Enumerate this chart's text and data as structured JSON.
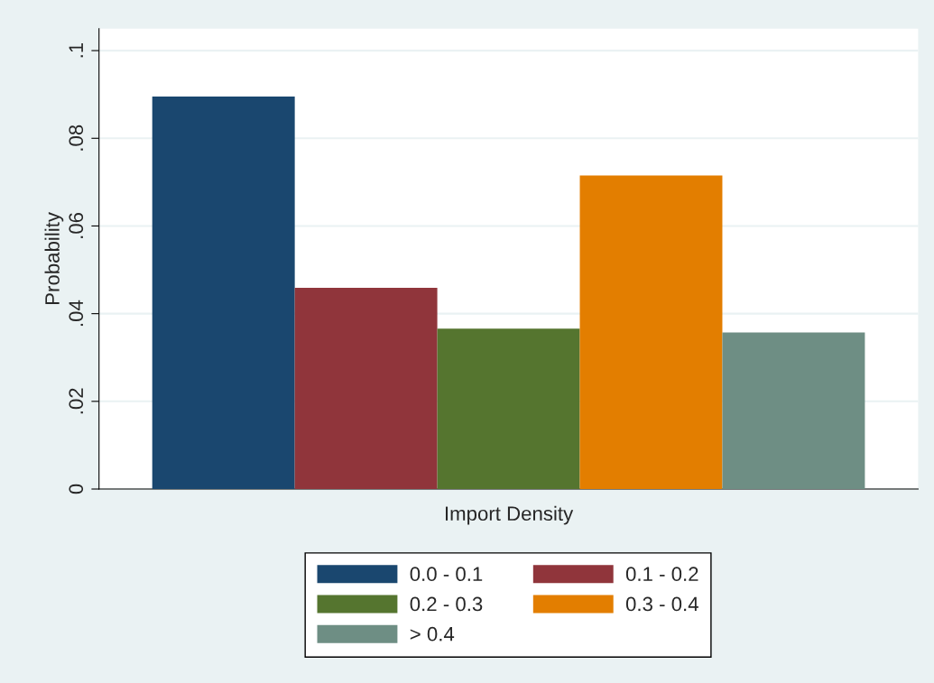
{
  "chart_data": {
    "type": "bar",
    "xlabel": "Import Density",
    "ylabel": "Probability",
    "categories": [
      null
    ],
    "series": [
      {
        "name": "0.0 - 0.1",
        "color": "#1a476f",
        "values": [
          0.0895
        ]
      },
      {
        "name": "0.1 - 0.2",
        "color": "#90353b",
        "values": [
          0.0459
        ]
      },
      {
        "name": "0.2 - 0.3",
        "color": "#55752f",
        "values": [
          0.0366
        ]
      },
      {
        "name": "0.3 - 0.4",
        "color": "#e37e00",
        "values": [
          0.0715
        ]
      },
      {
        "name": "> 0.4",
        "color": "#6e8e84",
        "values": [
          0.0357
        ]
      }
    ],
    "ylim": [
      0,
      0.105
    ],
    "yticks": [
      0,
      {
        "value": 0.02,
        "label": ".02"
      },
      {
        "value": 0.04,
        "label": ".04"
      },
      {
        "value": 0.06,
        "label": ".06"
      },
      {
        "value": 0.08,
        "label": ".08"
      },
      {
        "value": 0.1,
        "label": ".1"
      }
    ],
    "grid": "y",
    "legend": "bottom"
  }
}
